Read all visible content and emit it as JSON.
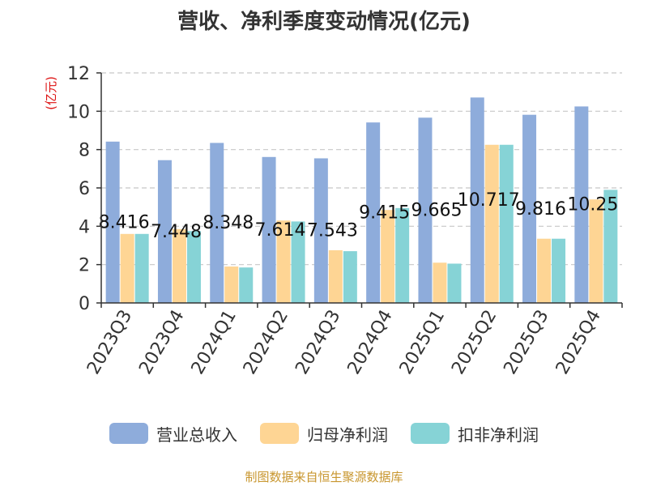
{
  "title": "营收、净利季度变动情况(亿元)",
  "source_text": "制图数据来自恒生聚源数据库",
  "chart_data": {
    "type": "bar",
    "title": "营收、净利季度变动情况(亿元)",
    "ylabel": "(亿元)",
    "xlabel": "",
    "ylim": [
      0,
      12
    ],
    "yticks": [
      0,
      2,
      4,
      6,
      8,
      10,
      12
    ],
    "grid": true,
    "legend_position": "bottom",
    "categories": [
      "2023Q3",
      "2023Q4",
      "2024Q1",
      "2024Q2",
      "2024Q3",
      "2024Q4",
      "2025Q1",
      "2025Q2",
      "2025Q3",
      "2025Q4"
    ],
    "series": [
      {
        "name": "营业总收入",
        "color": "#8eacdb",
        "values": [
          8.416,
          7.448,
          8.348,
          7.614,
          7.543,
          9.415,
          9.665,
          10.717,
          9.816,
          10.25
        ],
        "labels": [
          "8.416",
          "7.448",
          "8.348",
          "7.614",
          "7.543",
          "9.415",
          "9.665",
          "10.717",
          "9.816",
          "10.25"
        ]
      },
      {
        "name": "归母净利润",
        "color": "#fed594",
        "values": [
          3.6,
          3.85,
          1.9,
          4.3,
          2.75,
          4.85,
          2.1,
          8.25,
          3.35,
          5.4
        ]
      },
      {
        "name": "扣非净利润",
        "color": "#86d3d6",
        "values": [
          3.6,
          3.75,
          1.85,
          4.25,
          2.7,
          4.95,
          2.05,
          8.25,
          3.35,
          5.9
        ]
      }
    ]
  }
}
